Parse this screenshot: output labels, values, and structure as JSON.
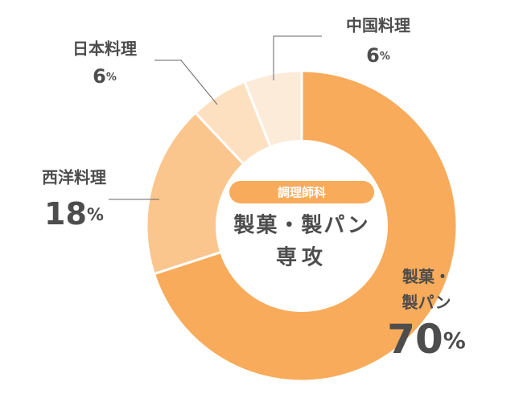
{
  "chart_data": {
    "type": "donut",
    "center_badge": "調理師科",
    "center_title": [
      "製菓・製パン",
      "専攻"
    ],
    "categories": [
      "製菓・製パン",
      "西洋料理",
      "日本料理",
      "中国料理"
    ],
    "values": [
      70,
      18,
      6,
      6
    ],
    "value_labels": [
      "70%",
      "18%",
      "6%",
      "6%"
    ],
    "colors": [
      "#f8ab5a",
      "#fbc68e",
      "#fde0c0",
      "#fdebd9"
    ]
  }
}
